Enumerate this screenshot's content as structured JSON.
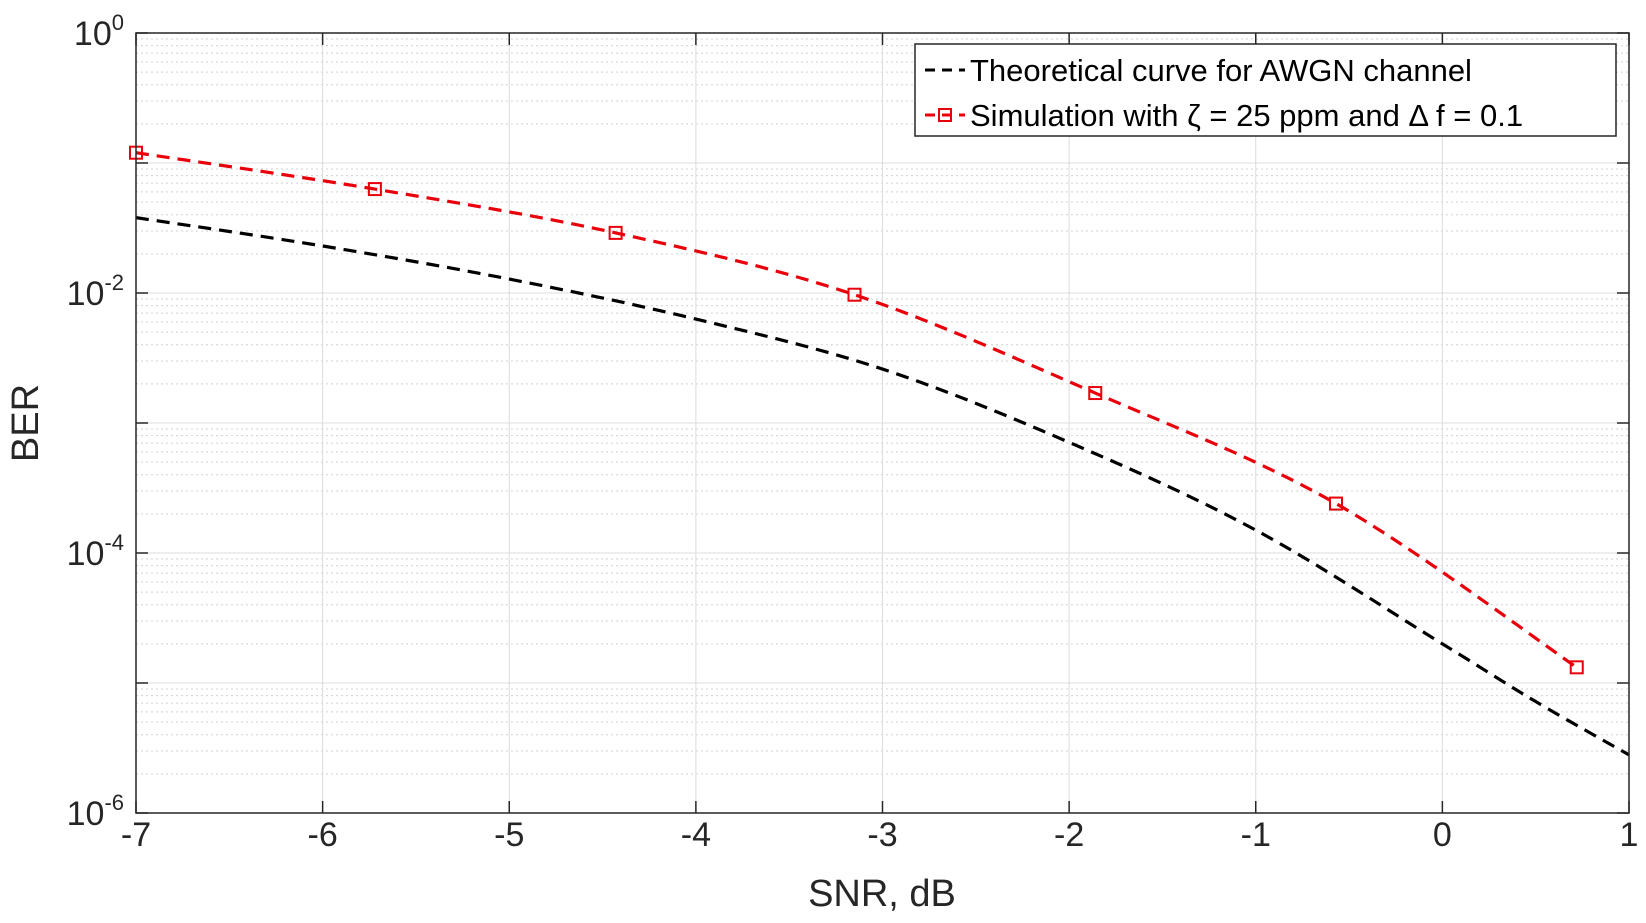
{
  "chart_data": {
    "type": "line",
    "xlabel": "SNR, dB",
    "ylabel": "BER",
    "xlim": [
      -7,
      1
    ],
    "ylim": [
      1e-06,
      1
    ],
    "y_scale": "log",
    "grid": true,
    "minor_grid": true,
    "legend_position": "top-right",
    "x_ticks": [
      "-7",
      "-6",
      "-5",
      "-4",
      "-3",
      "-2",
      "-1",
      "0",
      "1"
    ],
    "y_ticks": [
      {
        "base": "10",
        "exp": "0",
        "value": 1
      },
      {
        "base": "10",
        "exp": "-2",
        "value": 0.01
      },
      {
        "base": "10",
        "exp": "-4",
        "value": 0.0001
      },
      {
        "base": "10",
        "exp": "-6",
        "value": 1e-06
      }
    ],
    "series": [
      {
        "name": "Theoretical curve for AWGN channel",
        "color": "#000000",
        "style": "dashed",
        "marker": "none",
        "x": [
          -7,
          -6,
          -5,
          -4,
          -3,
          -2,
          -1,
          0,
          0.5,
          1
        ],
        "y": [
          0.038,
          0.023,
          0.0128,
          0.0063,
          0.0026,
          0.00071,
          0.00015,
          2e-05,
          7.2e-06,
          2.8e-06
        ]
      },
      {
        "name": "Simulation with ζ = 25 ppm and Δ f = 0.1",
        "color": "#e8000b",
        "style": "dashed",
        "marker": "square",
        "x": [
          -7,
          -5.72,
          -4.43,
          -3.15,
          -1.86,
          -0.57,
          0.72
        ],
        "y": [
          0.12,
          0.063,
          0.029,
          0.0097,
          0.0017,
          0.00024,
          1.32e-05
        ]
      }
    ]
  }
}
